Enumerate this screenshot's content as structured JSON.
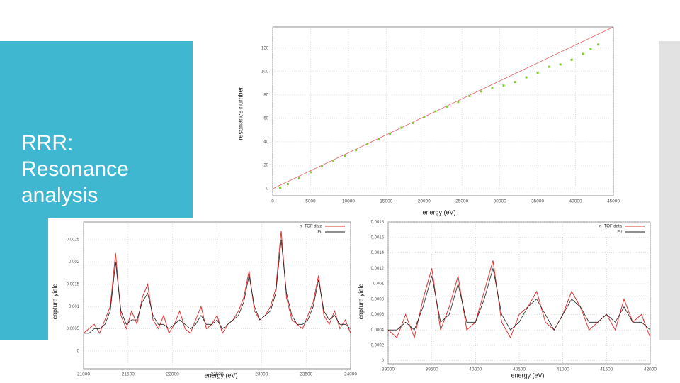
{
  "title": "RRR: Resonance analysis",
  "chart_data": [
    {
      "type": "scatter",
      "x_label": "energy (eV)",
      "y_label": "resonance number",
      "xlim": [
        0,
        45000
      ],
      "ylim": [
        -6,
        138
      ],
      "xticks": [
        0,
        5000,
        10000,
        15000,
        20000,
        25000,
        30000,
        35000,
        40000,
        45000
      ],
      "yticks": [
        0,
        20,
        40,
        60,
        80,
        100,
        120
      ],
      "grid": true,
      "series": [
        {
          "kind": "line",
          "color": "#e06060",
          "x": [
            0,
            45000
          ],
          "values": [
            0,
            138
          ]
        },
        {
          "kind": "points",
          "color": "#7cd030",
          "x": [
            1000,
            2000,
            3500,
            5000,
            6500,
            8000,
            9500,
            11000,
            12500,
            14000,
            15500,
            17000,
            18500,
            20000,
            21500,
            23000,
            24500,
            26000,
            27500,
            29000,
            30500,
            32000,
            33500,
            35000,
            36500,
            38000,
            39500,
            41000,
            42000,
            43000
          ],
          "values": [
            1,
            4,
            9,
            14,
            19,
            24,
            28,
            33,
            38,
            42,
            47,
            52,
            56,
            61,
            66,
            70,
            74,
            79,
            83,
            86,
            88,
            91,
            95,
            99,
            104,
            106,
            110,
            115,
            119,
            123
          ]
        }
      ]
    },
    {
      "type": "line",
      "x_label": "energy (eV)",
      "y_label": "capture yield",
      "xlim": [
        21000,
        24000
      ],
      "ylim": [
        -0.0004,
        0.0029
      ],
      "xticks": [
        21000,
        21500,
        22000,
        22500,
        23000,
        23500,
        24000
      ],
      "yticks": [
        0,
        0.0005,
        0.001,
        0.0015,
        0.002,
        0.0025
      ],
      "grid": true,
      "legend": "upper right",
      "x": [
        21000,
        21060,
        21120,
        21180,
        21240,
        21300,
        21360,
        21420,
        21480,
        21540,
        21600,
        21660,
        21720,
        21780,
        21840,
        21900,
        21960,
        22020,
        22080,
        22140,
        22200,
        22260,
        22320,
        22380,
        22440,
        22500,
        22560,
        22620,
        22680,
        22740,
        22800,
        22860,
        22920,
        22980,
        23040,
        23100,
        23160,
        23220,
        23280,
        23340,
        23400,
        23460,
        23520,
        23580,
        23640,
        23700,
        23760,
        23820,
        23880,
        23940,
        24000
      ],
      "series": [
        {
          "name": "n_TOF data",
          "color": "#e03030",
          "values": [
            0.0004,
            0.0005,
            0.0006,
            0.0004,
            0.0007,
            0.001,
            0.0022,
            0.0008,
            0.0005,
            0.0009,
            0.0006,
            0.0012,
            0.0015,
            0.0007,
            0.0005,
            0.0008,
            0.0004,
            0.0006,
            0.0009,
            0.0005,
            0.0004,
            0.0007,
            0.001,
            0.0005,
            0.0006,
            0.0008,
            0.0004,
            0.0006,
            0.0007,
            0.0009,
            0.0012,
            0.0018,
            0.0009,
            0.0007,
            0.0008,
            0.001,
            0.0014,
            0.0027,
            0.0012,
            0.0007,
            0.0006,
            0.0005,
            0.0008,
            0.0011,
            0.0017,
            0.0008,
            0.0006,
            0.0009,
            0.0005,
            0.0007,
            0.0004
          ]
        },
        {
          "name": "Fit",
          "color": "#222222",
          "values": [
            0.0004,
            0.0004,
            0.0005,
            0.0005,
            0.0006,
            0.0009,
            0.002,
            0.0009,
            0.0006,
            0.0007,
            0.0007,
            0.0011,
            0.0013,
            0.0008,
            0.0006,
            0.0006,
            0.0005,
            0.0006,
            0.0007,
            0.0006,
            0.0005,
            0.0006,
            0.0008,
            0.0006,
            0.0006,
            0.0007,
            0.0005,
            0.0006,
            0.0007,
            0.0008,
            0.0011,
            0.0017,
            0.001,
            0.0007,
            0.0008,
            0.0009,
            0.0013,
            0.0025,
            0.0013,
            0.0008,
            0.0006,
            0.0006,
            0.0007,
            0.001,
            0.0016,
            0.0009,
            0.0007,
            0.0008,
            0.0006,
            0.0006,
            0.0005
          ]
        }
      ]
    },
    {
      "type": "line",
      "x_label": "energy (eV)",
      "y_label": "capture yield",
      "xlim": [
        39000,
        42000
      ],
      "ylim": [
        -4e-05,
        0.0018
      ],
      "xticks": [
        39000,
        39500,
        40000,
        40500,
        41000,
        41500,
        42000
      ],
      "yticks": [
        0,
        0.0002,
        0.0004,
        0.0006,
        0.0008,
        0.001,
        0.0012,
        0.0014,
        0.0016,
        0.0018
      ],
      "grid": true,
      "legend": "upper right",
      "x": [
        39000,
        39100,
        39200,
        39300,
        39400,
        39500,
        39600,
        39700,
        39800,
        39900,
        40000,
        40100,
        40200,
        40300,
        40400,
        40500,
        40600,
        40700,
        40800,
        40900,
        41000,
        41100,
        41200,
        41300,
        41400,
        41500,
        41600,
        41700,
        41800,
        41900,
        42000
      ],
      "series": [
        {
          "name": "n_TOF data",
          "color": "#e03030",
          "values": [
            0.0004,
            0.0003,
            0.0006,
            0.0003,
            0.0008,
            0.0012,
            0.0004,
            0.0007,
            0.0011,
            0.0004,
            0.0005,
            0.0009,
            0.0013,
            0.0005,
            0.0003,
            0.0006,
            0.0007,
            0.0009,
            0.0005,
            0.0004,
            0.0006,
            0.0009,
            0.0007,
            0.0004,
            0.0005,
            0.0006,
            0.0004,
            0.0008,
            0.0005,
            0.0006,
            0.0003
          ]
        },
        {
          "name": "Fit",
          "color": "#222222",
          "values": [
            0.0004,
            0.0004,
            0.0005,
            0.0004,
            0.0007,
            0.0011,
            0.0005,
            0.0006,
            0.001,
            0.0005,
            0.0005,
            0.0008,
            0.0012,
            0.0006,
            0.0004,
            0.0005,
            0.0007,
            0.0008,
            0.0006,
            0.0004,
            0.0006,
            0.0008,
            0.0007,
            0.0005,
            0.0005,
            0.0006,
            0.0005,
            0.0007,
            0.0005,
            0.0005,
            0.0004
          ]
        }
      ]
    }
  ]
}
